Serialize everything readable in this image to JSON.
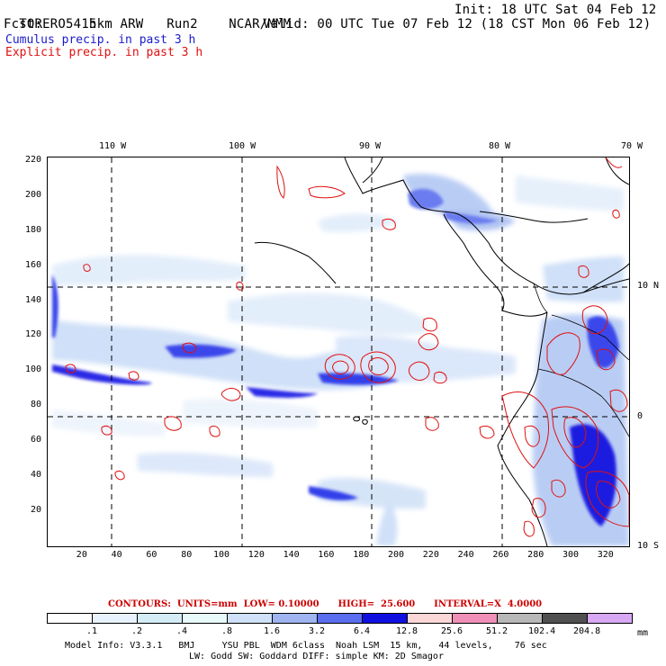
{
  "header": {
    "model": "TORERO",
    "resolution": "15km ARW",
    "run": "Run2",
    "center": "NCAR/MMM",
    "init": "Init: 18 UTC Sat 04 Feb 12",
    "fcst_label": "Fcst:",
    "fcst_hours": "54 h",
    "valid": "Valid: 00 UTC Tue 07 Feb 12 (18 CST Mon 06 Feb 12)",
    "field1": "Cumulus precip. in past 3 h",
    "field2": "Explicit precip. in past 3 h",
    "field1_color": "#1a1acc",
    "field2_color": "#e01010"
  },
  "map": {
    "lon_labels": [
      "110 W",
      "100 W",
      "90 W",
      "80 W",
      "70 W"
    ],
    "lat_labels": [
      "10 N",
      "0",
      "10 S"
    ],
    "x_ticks": [
      "20",
      "40",
      "60",
      "80",
      "100",
      "120",
      "140",
      "160",
      "180",
      "200",
      "220",
      "240",
      "260",
      "280",
      "300",
      "320"
    ],
    "y_ticks": [
      "220",
      "200",
      "180",
      "160",
      "140",
      "120",
      "100",
      "80",
      "60",
      "40",
      "20"
    ],
    "x_range": [
      0,
      333
    ],
    "y_range": [
      0,
      222
    ]
  },
  "contours": {
    "text": "CONTOURS:  UNITS=mm  LOW= 0.10000      HIGH=  25.600      INTERVAL=X  4.0000",
    "color": "#cc0000"
  },
  "colorbar": {
    "labels": [
      ".1",
      ".2",
      ".4",
      ".8",
      "1.6",
      "3.2",
      "6.4",
      "12.8",
      "25.6",
      "51.2",
      "102.4",
      "204.8"
    ],
    "colors": [
      "#ffffff",
      "#e8f2ff",
      "#d4ecf6",
      "#e8fafa",
      "#cfe0f8",
      "#9fb4f0",
      "#5a6ef0",
      "#1010e0",
      "#fbd6d6",
      "#f090b8",
      "#b8b8b8",
      "#505050",
      "#d8a8f4"
    ],
    "units": "mm"
  },
  "footer": {
    "line1": "Model Info: V3.3.1   BMJ     YSU PBL  WDM 6class  Noah LSM  15 km,   44 levels,    76 sec",
    "line2": "LW: Godd SW: Goddard DIFF: simple KM: 2D Smagor"
  }
}
